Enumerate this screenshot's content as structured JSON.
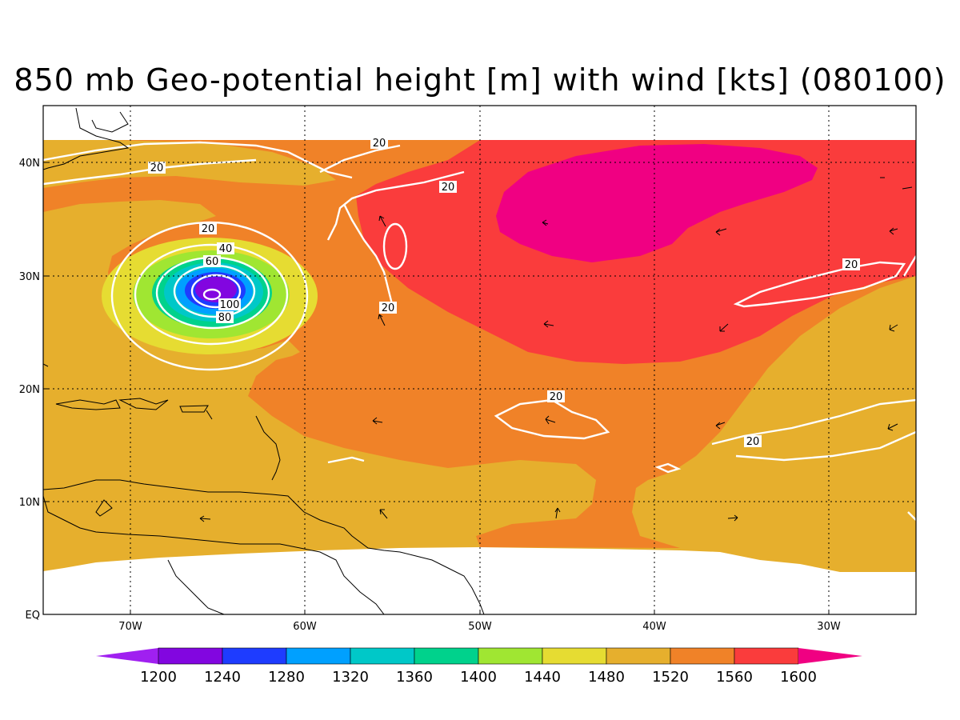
{
  "title": "850 mb Geo-potential height [m] with wind [kts] (080100)",
  "axes": {
    "lat_labels": [
      "40N",
      "30N",
      "20N",
      "10N",
      "EQ"
    ],
    "lon_labels": [
      "70W",
      "60W",
      "50W",
      "40W",
      "30W"
    ]
  },
  "colorbar": {
    "labels": [
      "1200",
      "1240",
      "1280",
      "1320",
      "1360",
      "1400",
      "1440",
      "1480",
      "1520",
      "1560",
      "1600"
    ],
    "colors": [
      "#a020f0",
      "#8206e0",
      "#1e3cff",
      "#00a0ff",
      "#00c8c8",
      "#00d28c",
      "#a0e632",
      "#e6dc32",
      "#e6af2d",
      "#f08228",
      "#fa3c3c",
      "#f00082"
    ]
  },
  "contour_labels": [
    "20",
    "20",
    "20",
    "20",
    "40",
    "60",
    "80",
    "100",
    "20",
    "20",
    "20",
    "20"
  ],
  "fill_colors": {
    "c1480": "#e6dc32",
    "c1520": "#e6af2d",
    "c1560": "#f08228",
    "c1600": "#fa3c3c",
    "c1640": "#f00082",
    "c1440": "#a0e632",
    "c1400": "#00d28c",
    "c1360": "#00c8c8",
    "c1320": "#00a0ff",
    "c1280": "#1e3cff",
    "c1240": "#8206e0"
  }
}
